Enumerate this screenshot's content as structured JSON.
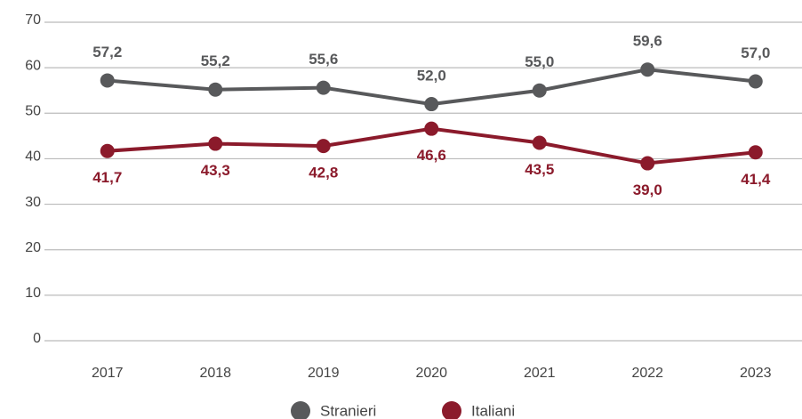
{
  "chart_data": {
    "type": "line",
    "categories": [
      "2017",
      "2018",
      "2019",
      "2020",
      "2021",
      "2022",
      "2023"
    ],
    "series": [
      {
        "name": "Stranieri",
        "color": "#58595b",
        "values": [
          57.2,
          55.2,
          55.6,
          52.0,
          55.0,
          59.6,
          57.0
        ],
        "value_labels": [
          "57,2",
          "55,2",
          "55,6",
          "52,0",
          "55,0",
          "59,6",
          "57,0"
        ]
      },
      {
        "name": "Italiani",
        "color": "#8b1a2b",
        "values": [
          41.7,
          43.3,
          42.8,
          46.6,
          43.5,
          39.0,
          41.4
        ],
        "value_labels": [
          "41,7",
          "43,3",
          "42,8",
          "46,6",
          "43,5",
          "39,0",
          "41,4"
        ]
      }
    ],
    "ylim": [
      0,
      70
    ],
    "yticks": [
      0,
      10,
      20,
      30,
      40,
      50,
      60,
      70
    ],
    "grid": true,
    "legend": "bottom"
  }
}
